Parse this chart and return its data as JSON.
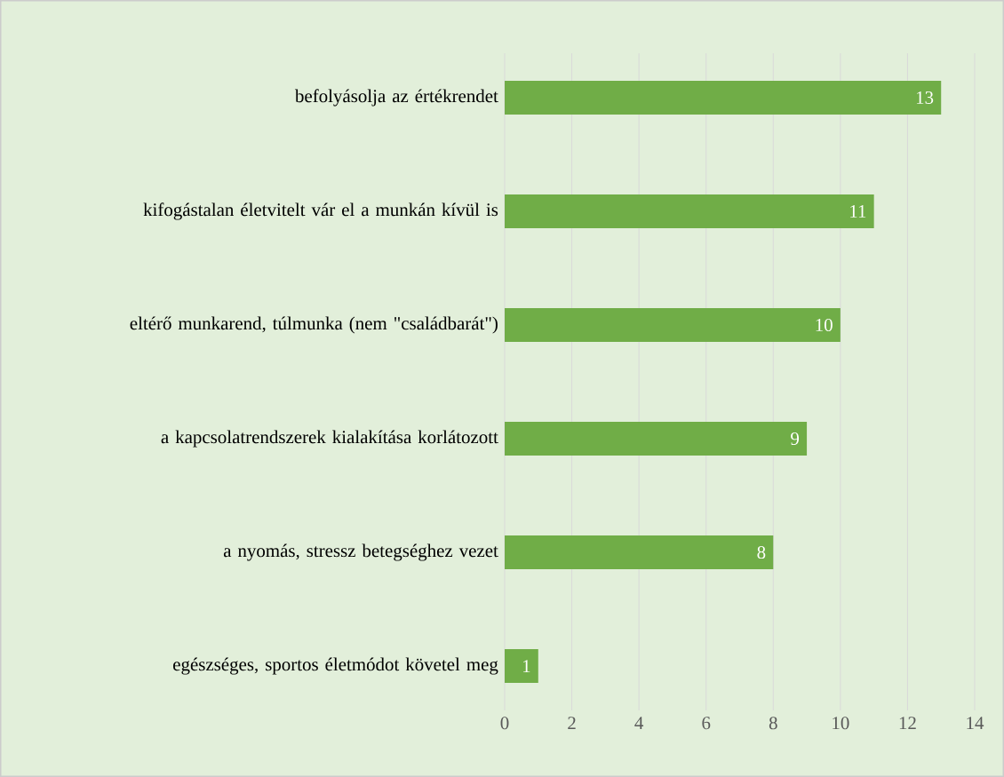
{
  "chart_data": {
    "type": "bar",
    "orientation": "horizontal",
    "categories": [
      "befolyásolja az értékrendet",
      "kifogástalan életvitelt vár el a munkán kívül is",
      "eltérő munkarend, túlmunka (nem \"családbarát\")",
      "a kapcsolatrendszerek kialakítása korlátozott",
      "a nyomás, stressz betegséghez vezet",
      "egészséges, sportos életmódot követel meg"
    ],
    "values": [
      13,
      11,
      10,
      9,
      8,
      1
    ],
    "color": "#70ad47",
    "xlim": [
      0,
      14
    ],
    "xticks": [
      0,
      2,
      4,
      6,
      8,
      10,
      12,
      14
    ],
    "grid": "x",
    "data_labels": true
  }
}
